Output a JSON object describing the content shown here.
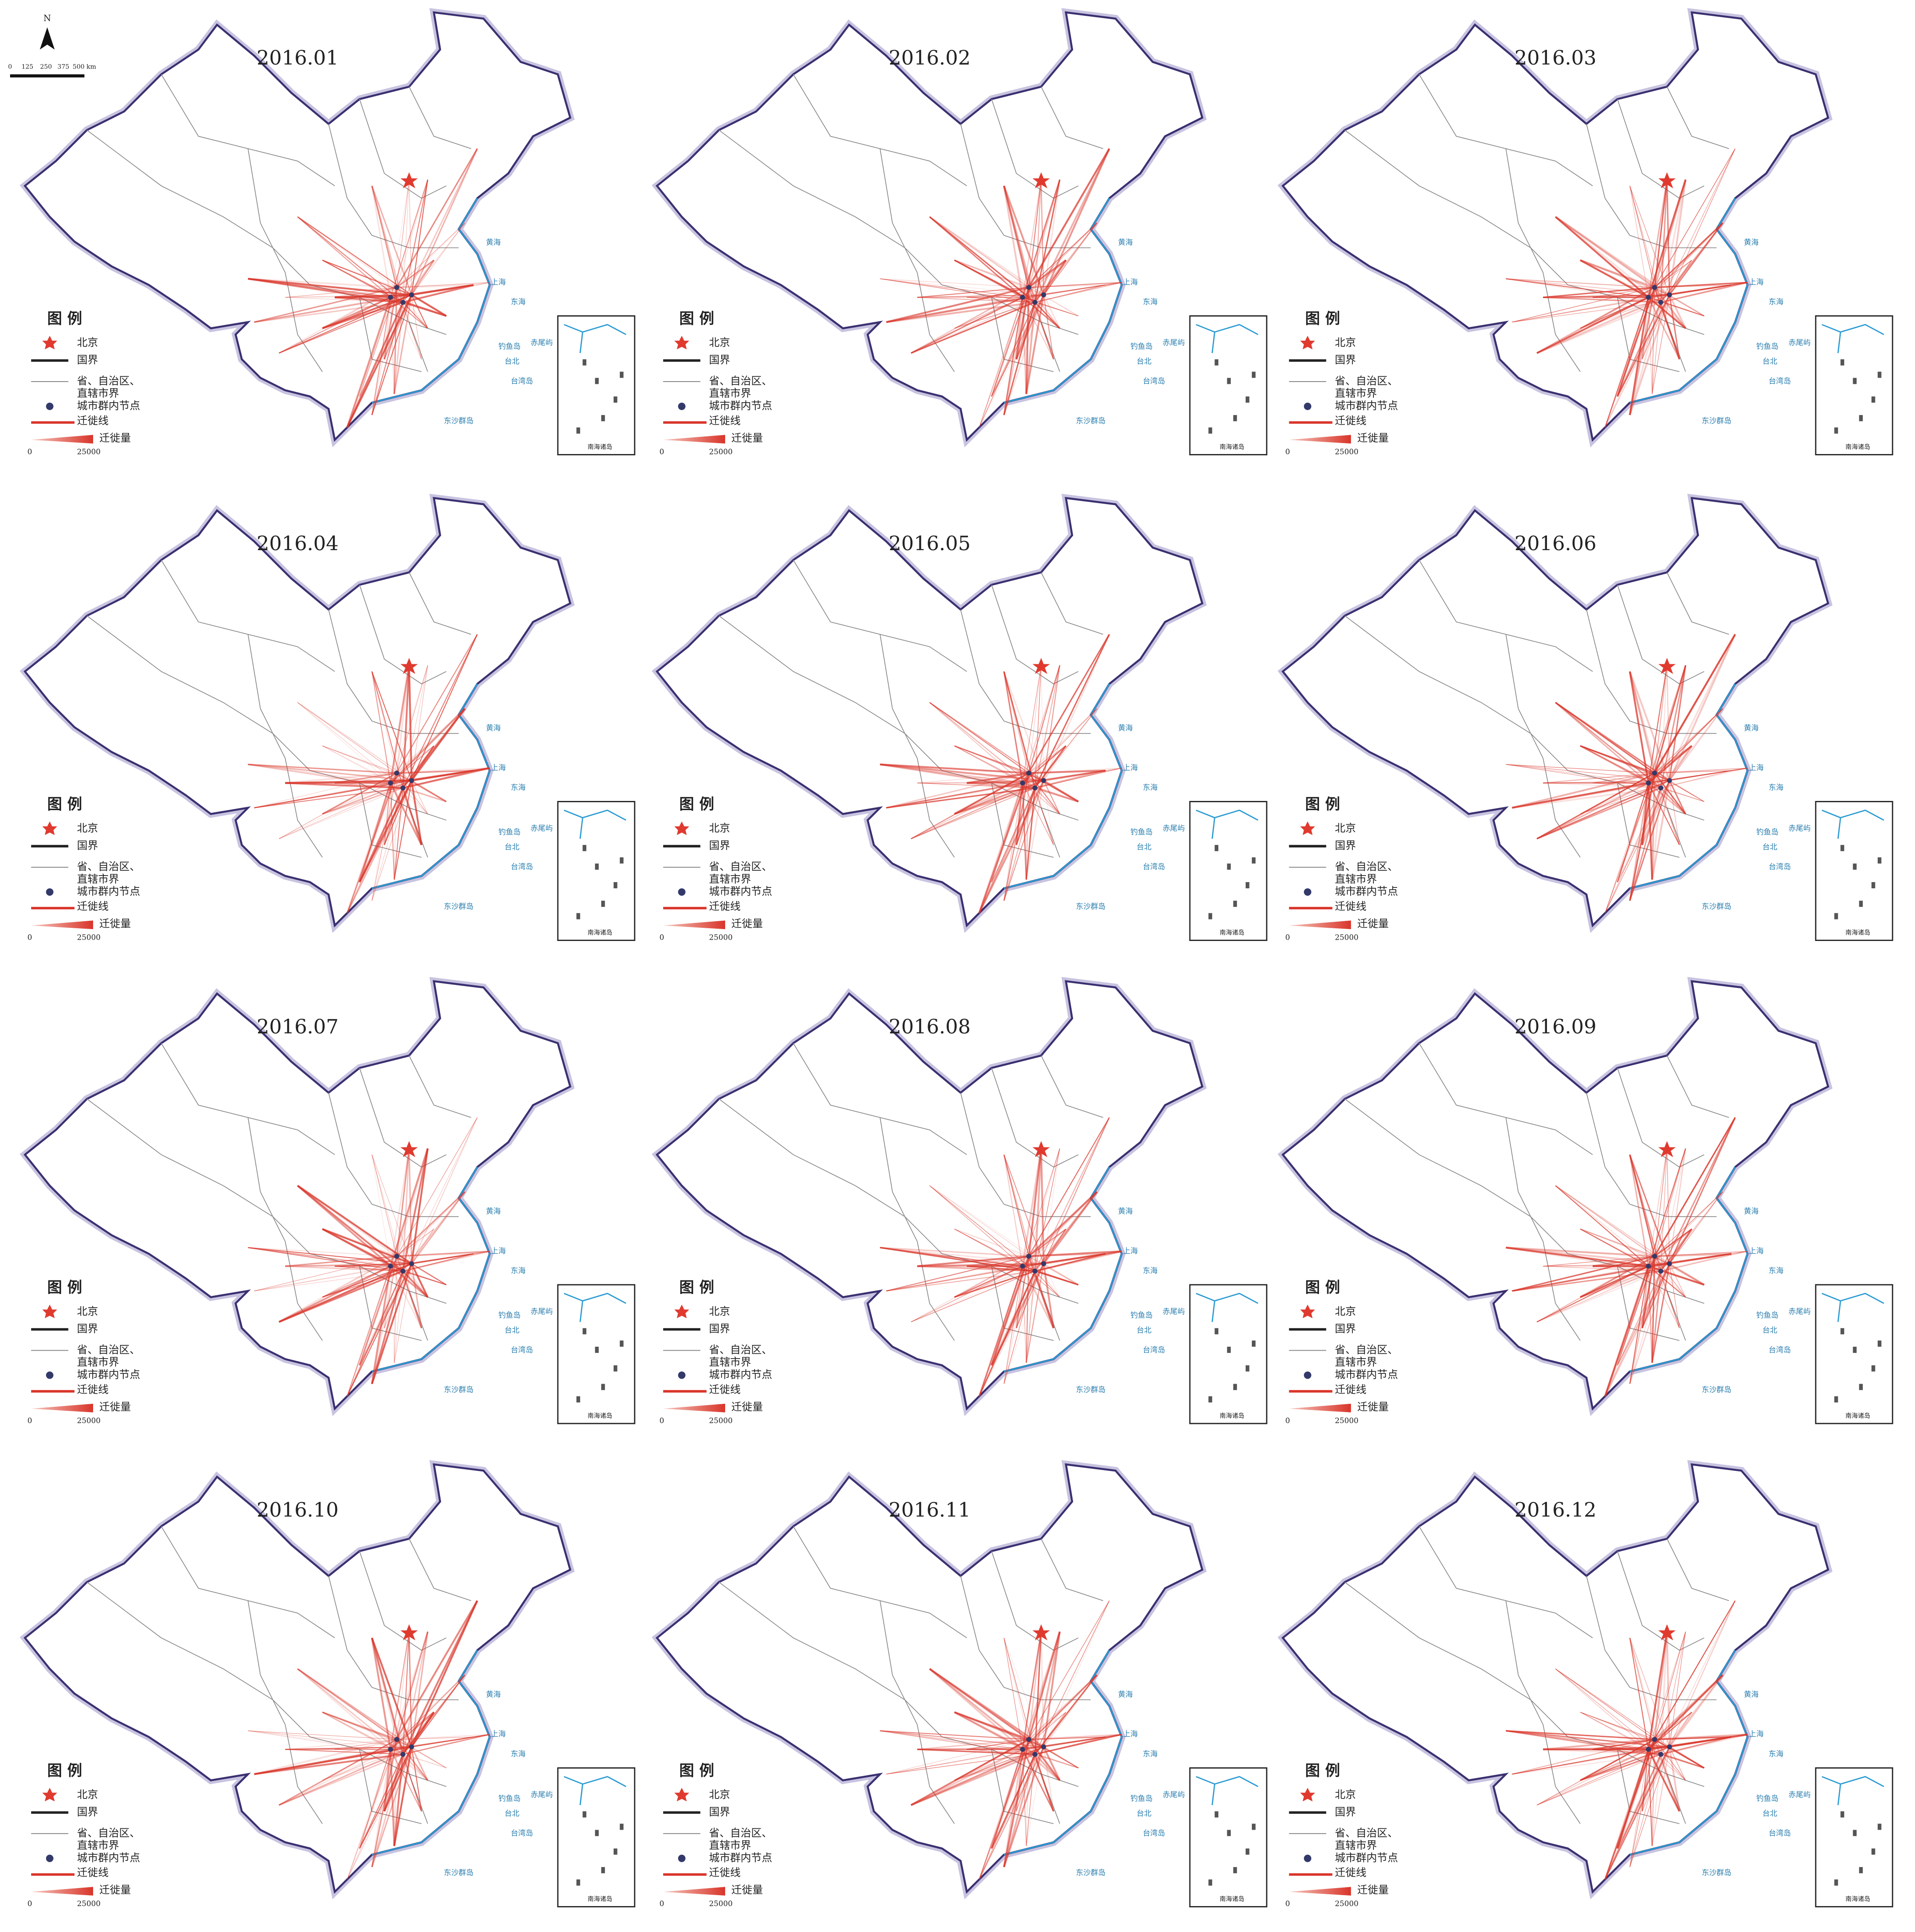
{
  "panels": [
    {
      "title": "2016.01"
    },
    {
      "title": "2016.02"
    },
    {
      "title": "2016.03"
    },
    {
      "title": "2016.04"
    },
    {
      "title": "2016.05"
    },
    {
      "title": "2016.06"
    },
    {
      "title": "2016.07"
    },
    {
      "title": "2016.08"
    },
    {
      "title": "2016.09"
    },
    {
      "title": "2016.10"
    },
    {
      "title": "2016.11"
    },
    {
      "title": "2016.12"
    }
  ],
  "legend": {
    "title": "图 例",
    "items": [
      "北京",
      "国界",
      "省、自治区、",
      "直辖市界",
      "城市群内节点",
      "迁徙线",
      "迁徙量"
    ],
    "volume_scale": [
      "0",
      "25000"
    ]
  },
  "scale_bar": {
    "north": "N",
    "ticks": [
      "0",
      "125",
      "250",
      "375",
      "500 km"
    ]
  },
  "map_labels": [
    "黄海",
    "上海",
    "东海",
    "钓鱼岛",
    "赤尾屿",
    "台北",
    "台湾岛",
    "东沙群岛"
  ],
  "inset_label": "南海诸岛"
}
